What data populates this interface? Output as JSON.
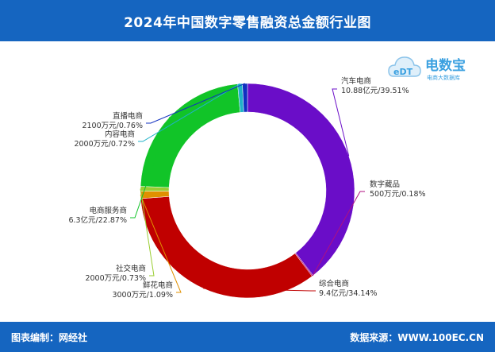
{
  "header": {
    "title": "2024年中国数字零售融资总金额行业图"
  },
  "logo": {
    "brand": "电数宝",
    "mark": "eDT",
    "subtitle": "电商大数据库"
  },
  "footer": {
    "left": "图表编制：网经社",
    "right": "数据来源：WWW.100EC.CN"
  },
  "colors": {
    "header_bg": "#1565c0",
    "footer_bg": "#1565c0"
  },
  "chart_data": {
    "type": "pie",
    "variant": "donut",
    "unit": "亿元",
    "slices": [
      {
        "name": "汽车电商",
        "value": 10.88,
        "label_value": "10.88亿元/39.51%",
        "percent": 39.51,
        "color": "#6a0dc8"
      },
      {
        "name": "数字藏品",
        "value": 0.05,
        "label_value": "500万元/0.18%",
        "percent": 0.18,
        "color": "#b01080"
      },
      {
        "name": "综合电商",
        "value": 9.4,
        "label_value": "9.4亿元/34.14%",
        "percent": 34.14,
        "color": "#c00000"
      },
      {
        "name": "鲜花电商",
        "value": 0.3,
        "label_value": "3000万元/1.09%",
        "percent": 1.09,
        "color": "#e09000"
      },
      {
        "name": "社交电商",
        "value": 0.2,
        "label_value": "2000万元/0.73%",
        "percent": 0.73,
        "color": "#9acd32"
      },
      {
        "name": "电商服务商",
        "value": 6.3,
        "label_value": "6.3亿元/22.87%",
        "percent": 22.87,
        "color": "#11c428"
      },
      {
        "name": "内容电商",
        "value": 0.2,
        "label_value": "2000万元/0.72%",
        "percent": 0.72,
        "color": "#20b2c8"
      },
      {
        "name": "直播电商",
        "value": 0.21,
        "label_value": "2100万元/0.76%",
        "percent": 0.76,
        "color": "#1030c0"
      }
    ]
  }
}
